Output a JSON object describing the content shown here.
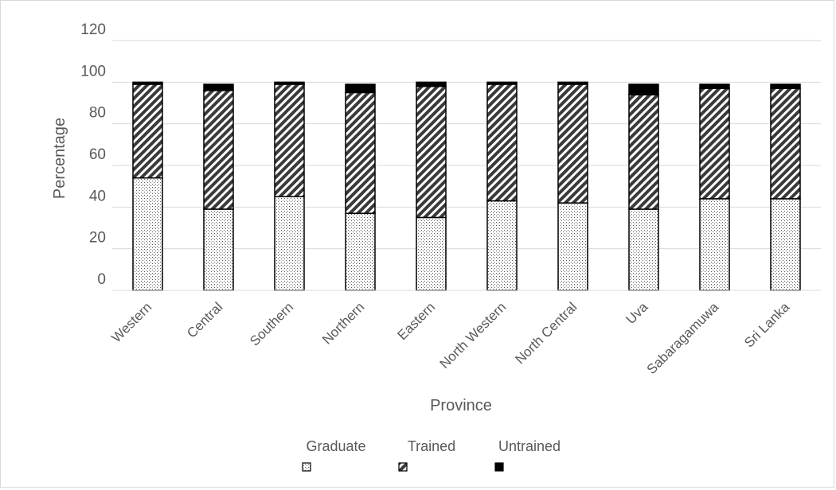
{
  "chart_data": {
    "type": "bar",
    "stacked": true,
    "title": "",
    "xlabel": "Province",
    "ylabel": "Percentage",
    "ylim": [
      0,
      120
    ],
    "yticks": [
      0,
      20,
      40,
      60,
      80,
      100,
      120
    ],
    "ytick_labels": [
      "0",
      "20",
      "40",
      "60",
      "80",
      "100",
      "120"
    ],
    "grid": true,
    "legend_position": "bottom",
    "categories": [
      "Western",
      "Central",
      "Southern",
      "Northern",
      "Eastern",
      "North Western",
      "North Central",
      "Uva",
      "Sabaragamuwa",
      "Sri Lanka"
    ],
    "series": [
      {
        "name": "Graduate",
        "pattern": "dots",
        "color": "#bfbfbf",
        "values": [
          54,
          39,
          45,
          37,
          35,
          43,
          42,
          39,
          44,
          44
        ]
      },
      {
        "name": "Trained",
        "pattern": "diagonal",
        "color": "#404040",
        "values": [
          45,
          57,
          54,
          58,
          63,
          56,
          57,
          55,
          53,
          53
        ]
      },
      {
        "name": "Untrained",
        "pattern": "solid",
        "color": "#000000",
        "values": [
          1,
          3,
          1,
          4,
          2,
          1,
          1,
          5,
          2,
          2
        ]
      }
    ]
  }
}
